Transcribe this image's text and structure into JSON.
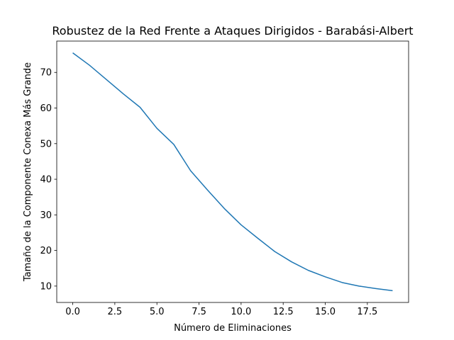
{
  "chart_data": {
    "type": "line",
    "title": "Robustez de la Red Frente a Ataques Dirigidos - Barabási-Albert",
    "xlabel": "Número de Eliminaciones",
    "ylabel": "Tamaño de la Componente Conexa Más Grande",
    "xlim": [
      -0.95,
      19.95
    ],
    "ylim": [
      5.4,
      78.8
    ],
    "xticks": [
      "0.0",
      "2.5",
      "5.0",
      "7.5",
      "10.0",
      "12.5",
      "15.0",
      "17.5"
    ],
    "yticks": [
      "10",
      "20",
      "30",
      "40",
      "50",
      "60",
      "70"
    ],
    "grid": false,
    "series": [
      {
        "color": "#1f77b4",
        "x": [
          0,
          1,
          2,
          3,
          4,
          5,
          6,
          7,
          8,
          9,
          10,
          11,
          12,
          13,
          14,
          15,
          16,
          17,
          18,
          19
        ],
        "y": [
          75.5,
          72.0,
          68.0,
          64.0,
          60.2,
          54.3,
          49.8,
          42.4,
          37.0,
          31.8,
          27.2,
          23.4,
          19.7,
          16.8,
          14.4,
          12.6,
          11.0,
          10.0,
          9.3,
          8.7
        ]
      }
    ]
  }
}
